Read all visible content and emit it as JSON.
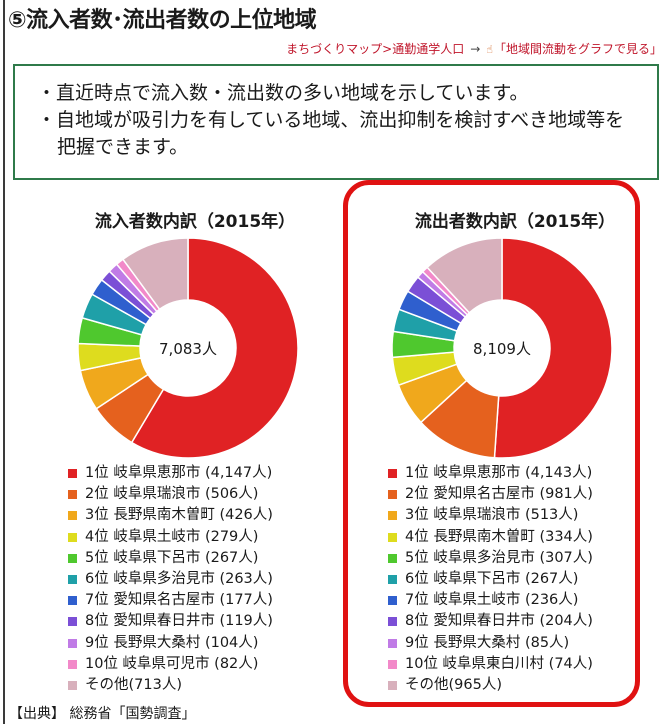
{
  "page": {
    "title": "⑤流入者数･流出者数の上位地域",
    "breadcrumb_path": "まちづくりマップ>通勤通学人口",
    "breadcrumb_arrow": "→",
    "breadcrumb_link": "「地域間流動をグラフで見る」",
    "info_lines": [
      "・直近時点で流入数・流出数の多い地域を示しています。",
      "・自地域が吸引力を有している地域、流出抑制を検討すべき地域等を",
      "把握できます。"
    ],
    "source": "【出典】 総務省「国勢調査」"
  },
  "colors": {
    "rank_palette": [
      "#e02224",
      "#e5611e",
      "#f0a81c",
      "#dedc1e",
      "#4fc82e",
      "#1fa0a8",
      "#2f5fce",
      "#7b4fd6",
      "#c07be6",
      "#f289c9",
      "#d8b0bc"
    ],
    "info_border": "#2f7a4a",
    "highlight": "#e01212",
    "breadcrumb": "#c0162b"
  },
  "chart_data": [
    {
      "type": "pie",
      "variant": "donut",
      "title": "流入者数内訳（2015年）",
      "center_label": "7,083人",
      "legend_position": "bottom",
      "slices": [
        {
          "label": "1位 岐阜県恵那市 (4,147人)",
          "value": 4147
        },
        {
          "label": "2位 岐阜県瑞浪市 (506人)",
          "value": 506
        },
        {
          "label": "3位 長野県南木曽町 (426人)",
          "value": 426
        },
        {
          "label": "4位 岐阜県土岐市 (279人)",
          "value": 279
        },
        {
          "label": "5位 岐阜県下呂市 (267人)",
          "value": 267
        },
        {
          "label": "6位 岐阜県多治見市 (263人)",
          "value": 263
        },
        {
          "label": "7位 愛知県名古屋市 (177人)",
          "value": 177
        },
        {
          "label": "8位 愛知県春日井市 (119人)",
          "value": 119
        },
        {
          "label": "9位 長野県大桑村 (104人)",
          "value": 104
        },
        {
          "label": "10位 岐阜県可児市 (82人)",
          "value": 82
        },
        {
          "label": "その他(713人)",
          "value": 713
        }
      ]
    },
    {
      "type": "pie",
      "variant": "donut",
      "title": "流出者数内訳（2015年）",
      "center_label": "8,109人",
      "legend_position": "bottom",
      "highlighted": true,
      "slices": [
        {
          "label": "1位 岐阜県恵那市 (4,143人)",
          "value": 4143
        },
        {
          "label": "2位 愛知県名古屋市 (981人)",
          "value": 981
        },
        {
          "label": "3位 岐阜県瑞浪市 (513人)",
          "value": 513
        },
        {
          "label": "4位 長野県南木曽町 (334人)",
          "value": 334
        },
        {
          "label": "5位 岐阜県多治見市 (307人)",
          "value": 307
        },
        {
          "label": "6位 岐阜県下呂市 (267人)",
          "value": 267
        },
        {
          "label": "7位 岐阜県土岐市 (236人)",
          "value": 236
        },
        {
          "label": "8位 愛知県春日井市 (204人)",
          "value": 204
        },
        {
          "label": "9位 長野県大桑村 (85人)",
          "value": 85
        },
        {
          "label": "10位 岐阜県東白川村 (74人)",
          "value": 74
        },
        {
          "label": "その他(965人)",
          "value": 965
        }
      ]
    }
  ]
}
